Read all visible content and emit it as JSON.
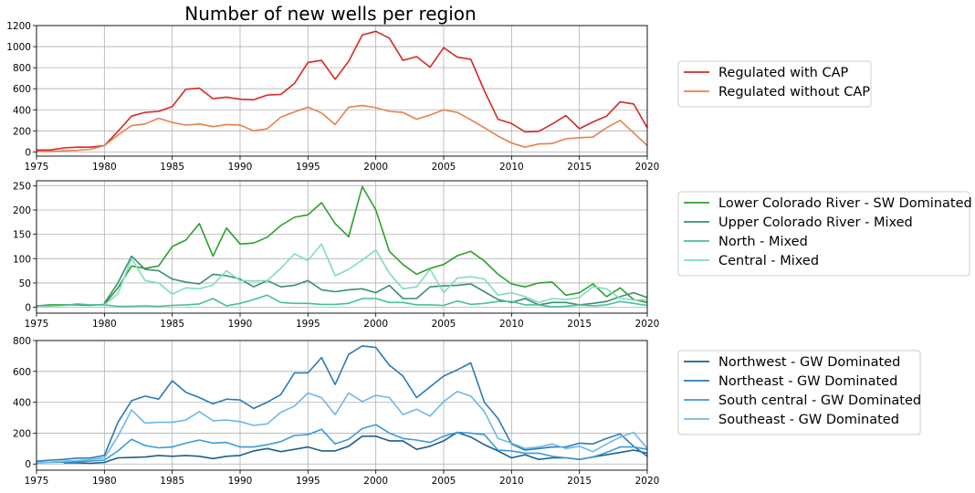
{
  "title": "Number of new wells per region",
  "chart_data": [
    {
      "type": "line",
      "title": "Number of new wells per region",
      "xlabel": "",
      "ylabel": "",
      "xlim": [
        1975,
        2020
      ],
      "ylim": [
        -40,
        1200
      ],
      "xticks": [
        1975,
        1980,
        1985,
        1990,
        1995,
        2000,
        2005,
        2010,
        2015,
        2020
      ],
      "yticks": [
        0,
        200,
        400,
        600,
        800,
        1000,
        1200
      ],
      "grid": true,
      "legend_position": "outside-right",
      "series": [
        {
          "name": "Regulated with CAP",
          "color": "#d62728",
          "x_start": 1975,
          "values": [
            18,
            18,
            38,
            45,
            45,
            60,
            195,
            340,
            375,
            385,
            430,
            595,
            605,
            505,
            520,
            500,
            495,
            540,
            545,
            650,
            850,
            870,
            690,
            860,
            1110,
            1145,
            1080,
            870,
            905,
            805,
            990,
            900,
            880,
            580,
            310,
            270,
            190,
            195,
            265,
            345,
            220,
            285,
            340,
            475,
            455,
            230
          ]
        },
        {
          "name": "Regulated without CAP",
          "color": "#e8804b",
          "x_start": 1975,
          "values": [
            5,
            5,
            10,
            15,
            25,
            60,
            160,
            250,
            265,
            320,
            280,
            255,
            265,
            240,
            260,
            255,
            200,
            220,
            330,
            380,
            425,
            370,
            260,
            425,
            440,
            420,
            385,
            375,
            310,
            350,
            400,
            375,
            305,
            230,
            150,
            85,
            45,
            75,
            80,
            125,
            135,
            140,
            230,
            300,
            180,
            60
          ]
        }
      ]
    },
    {
      "type": "line",
      "xlabel": "",
      "ylabel": "",
      "xlim": [
        1975,
        2020
      ],
      "ylim": [
        -12,
        260
      ],
      "xticks": [
        1975,
        1980,
        1985,
        1990,
        1995,
        2000,
        2005,
        2010,
        2015,
        2020
      ],
      "yticks": [
        0,
        50,
        100,
        150,
        200,
        250
      ],
      "grid": true,
      "legend_position": "outside-right",
      "series": [
        {
          "name": "Lower Colorado River - SW Dominated",
          "color": "#2ca02c",
          "x_start": 1975,
          "values": [
            3,
            5,
            5,
            5,
            4,
            6,
            40,
            85,
            80,
            85,
            125,
            138,
            172,
            105,
            163,
            130,
            132,
            144,
            168,
            185,
            190,
            215,
            172,
            145,
            248,
            200,
            115,
            88,
            68,
            80,
            88,
            106,
            115,
            95,
            68,
            48,
            42,
            50,
            52,
            25,
            30,
            48,
            22,
            40,
            16,
            10
          ]
        },
        {
          "name": "Upper Colorado River - Mixed",
          "color": "#3a8f70",
          "x_start": 1975,
          "values": [
            null,
            null,
            null,
            null,
            null,
            8,
            50,
            105,
            78,
            75,
            58,
            52,
            48,
            68,
            65,
            58,
            42,
            55,
            42,
            45,
            55,
            36,
            32,
            36,
            38,
            30,
            45,
            18,
            18,
            42,
            44,
            45,
            48,
            32,
            16,
            10,
            18,
            5,
            10,
            10,
            5,
            8,
            12,
            22,
            30,
            20
          ]
        },
        {
          "name": "North - Mixed",
          "color": "#45c0a0",
          "x_start": 1975,
          "values": [
            3,
            3,
            4,
            7,
            5,
            5,
            2,
            2,
            3,
            2,
            4,
            5,
            7,
            18,
            3,
            8,
            16,
            25,
            10,
            8,
            8,
            6,
            6,
            8,
            18,
            18,
            10,
            10,
            5,
            5,
            4,
            13,
            6,
            8,
            12,
            12,
            5,
            5,
            1,
            2,
            5,
            3,
            5,
            12,
            8,
            4
          ]
        },
        {
          "name": "Central - Mixed",
          "color": "#7fdcc5",
          "x_start": 1975,
          "values": [
            null,
            null,
            null,
            null,
            null,
            5,
            28,
            100,
            55,
            50,
            27,
            40,
            38,
            46,
            75,
            55,
            54,
            55,
            80,
            110,
            96,
            130,
            65,
            78,
            97,
            118,
            70,
            38,
            42,
            78,
            30,
            60,
            63,
            58,
            25,
            30,
            22,
            10,
            18,
            16,
            20,
            42,
            38,
            18,
            15,
            15
          ]
        }
      ]
    },
    {
      "type": "line",
      "xlabel": "",
      "ylabel": "",
      "xlim": [
        1975,
        2020
      ],
      "ylim": [
        -40,
        800
      ],
      "xticks": [
        1975,
        1980,
        1985,
        1990,
        1995,
        2000,
        2005,
        2010,
        2015,
        2020
      ],
      "yticks": [
        0,
        200,
        400,
        600,
        800
      ],
      "grid": true,
      "legend_position": "outside-right",
      "series": [
        {
          "name": "Northwest - GW Dominated",
          "color": "#1f5f8b",
          "x_start": 1975,
          "values": [
            null,
            null,
            8,
            8,
            5,
            10,
            40,
            42,
            45,
            55,
            50,
            55,
            50,
            35,
            50,
            55,
            85,
            100,
            80,
            95,
            110,
            85,
            85,
            115,
            180,
            180,
            150,
            150,
            95,
            115,
            150,
            205,
            175,
            125,
            85,
            40,
            60,
            30,
            40,
            40,
            30,
            45,
            60,
            75,
            90,
            70
          ]
        },
        {
          "name": "Northeast - GW Dominated",
          "color": "#2a7ab8",
          "x_start": 1975,
          "values": [
            18,
            25,
            30,
            38,
            40,
            55,
            270,
            410,
            440,
            420,
            540,
            465,
            430,
            390,
            420,
            415,
            360,
            400,
            450,
            590,
            590,
            690,
            515,
            710,
            765,
            755,
            640,
            570,
            430,
            500,
            570,
            610,
            655,
            400,
            295,
            130,
            90,
            100,
            110,
            110,
            135,
            130,
            165,
            195,
            115,
            50
          ]
        },
        {
          "name": "South central - GW Dominated",
          "color": "#3a9ad8",
          "x_start": 1975,
          "values": [
            8,
            10,
            12,
            15,
            20,
            25,
            85,
            160,
            120,
            105,
            110,
            135,
            155,
            135,
            140,
            110,
            110,
            125,
            145,
            185,
            190,
            225,
            130,
            160,
            230,
            255,
            200,
            165,
            155,
            140,
            180,
            205,
            200,
            190,
            90,
            85,
            70,
            70,
            50,
            40,
            30,
            45,
            75,
            110,
            110,
            95
          ]
        },
        {
          "name": "Southeast - GW Dominated",
          "color": "#6cb8e8",
          "x_start": 1975,
          "values": [
            10,
            12,
            18,
            22,
            30,
            40,
            180,
            350,
            265,
            270,
            270,
            285,
            340,
            280,
            285,
            275,
            250,
            260,
            335,
            375,
            460,
            430,
            320,
            460,
            405,
            445,
            430,
            320,
            355,
            310,
            405,
            470,
            440,
            340,
            165,
            135,
            100,
            110,
            130,
            100,
            115,
            80,
            130,
            175,
            205,
            100
          ]
        }
      ]
    }
  ]
}
